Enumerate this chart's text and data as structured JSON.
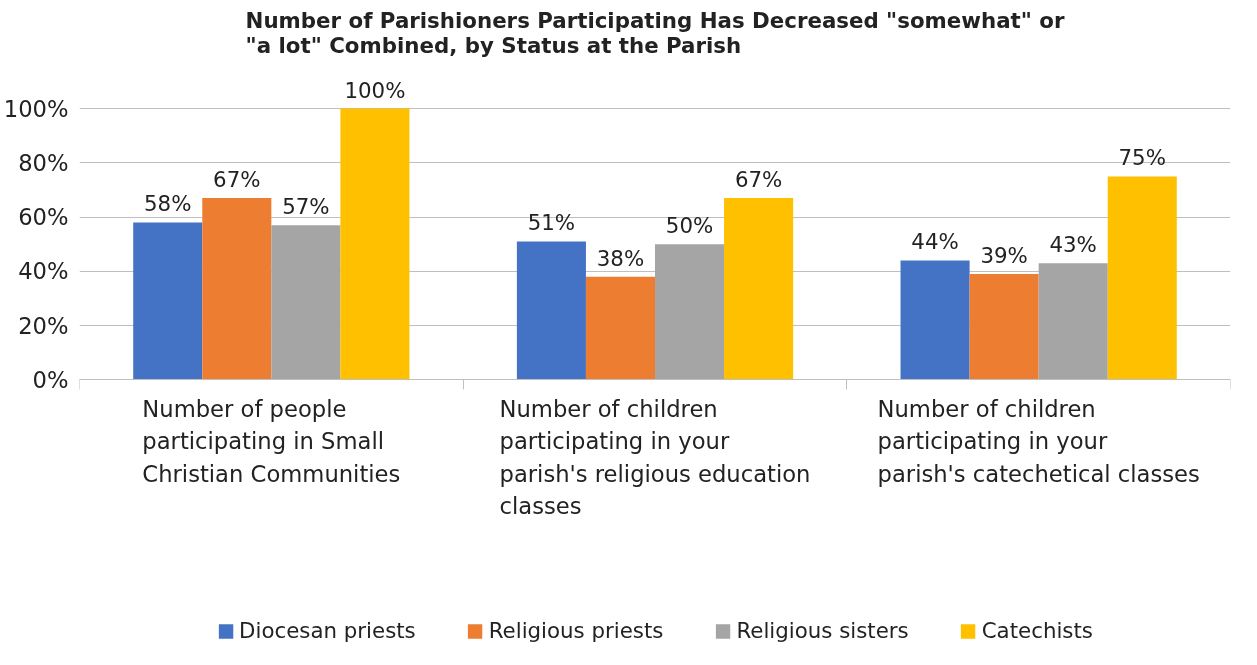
{
  "chart_data": {
    "type": "bar",
    "title": "Number of Parishioners Participating Has Decreased \"somewhat\" or \"a lot\" Combined, by Status at the Parish",
    "categories": [
      "Number of people participating in Small Christian Communities",
      "Number of children participating in your parish's religious education classes",
      "Number of children participating in your parish's catechetical classes"
    ],
    "series": [
      {
        "name": "Diocesan priests",
        "color": "#4472c4",
        "values": [
          58,
          51,
          44
        ],
        "value_labels": [
          "58%",
          "51%",
          "44%"
        ]
      },
      {
        "name": "Religious priests",
        "color": "#ed7d31",
        "values": [
          67,
          38,
          39
        ],
        "value_labels": [
          "67%",
          "38%",
          "39%"
        ]
      },
      {
        "name": "Religious sisters",
        "color": "#a5a5a5",
        "values": [
          57,
          50,
          43
        ],
        "value_labels": [
          "57%",
          "50%",
          "43%"
        ]
      },
      {
        "name": "Catechists",
        "color": "#ffc000",
        "values": [
          100,
          67,
          75
        ],
        "value_labels": [
          "100%",
          "67%",
          "75%"
        ]
      }
    ],
    "ylim": [
      0,
      100
    ],
    "yticks": [
      {
        "value": 0,
        "label": "0%"
      },
      {
        "value": 20,
        "label": "20%"
      },
      {
        "value": 40,
        "label": "40%"
      },
      {
        "value": 60,
        "label": "60%"
      },
      {
        "value": 80,
        "label": "80%"
      },
      {
        "value": 100,
        "label": "100%"
      }
    ],
    "grid": "y",
    "legend": "bottom"
  }
}
